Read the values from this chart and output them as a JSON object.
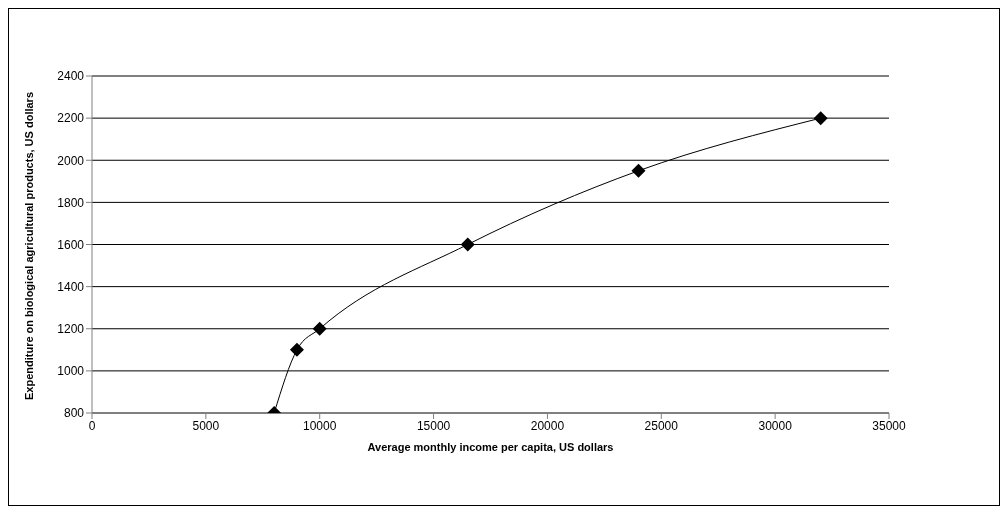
{
  "chart_data": {
    "type": "line",
    "xlabel": "Average monthly income per capita, US dollars",
    "ylabel": "Expenditure on biological agricultural products, US dollars",
    "x": [
      8000,
      9000,
      10000,
      16500,
      24000,
      32000
    ],
    "series": [
      {
        "color": "#000000",
        "values": [
          800,
          1100,
          1200,
          1600,
          1950,
          2200
        ]
      }
    ],
    "xlim": [
      0,
      35000
    ],
    "xticks": [
      0,
      5000,
      10000,
      15000,
      20000,
      25000,
      30000,
      35000
    ],
    "ylim": [
      800,
      2400
    ],
    "yticks": [
      800,
      1000,
      1200,
      1400,
      1600,
      1800,
      2000,
      2200,
      2400
    ],
    "grid": "y",
    "legend": false,
    "marker": "diamond",
    "line_style": "solid"
  }
}
